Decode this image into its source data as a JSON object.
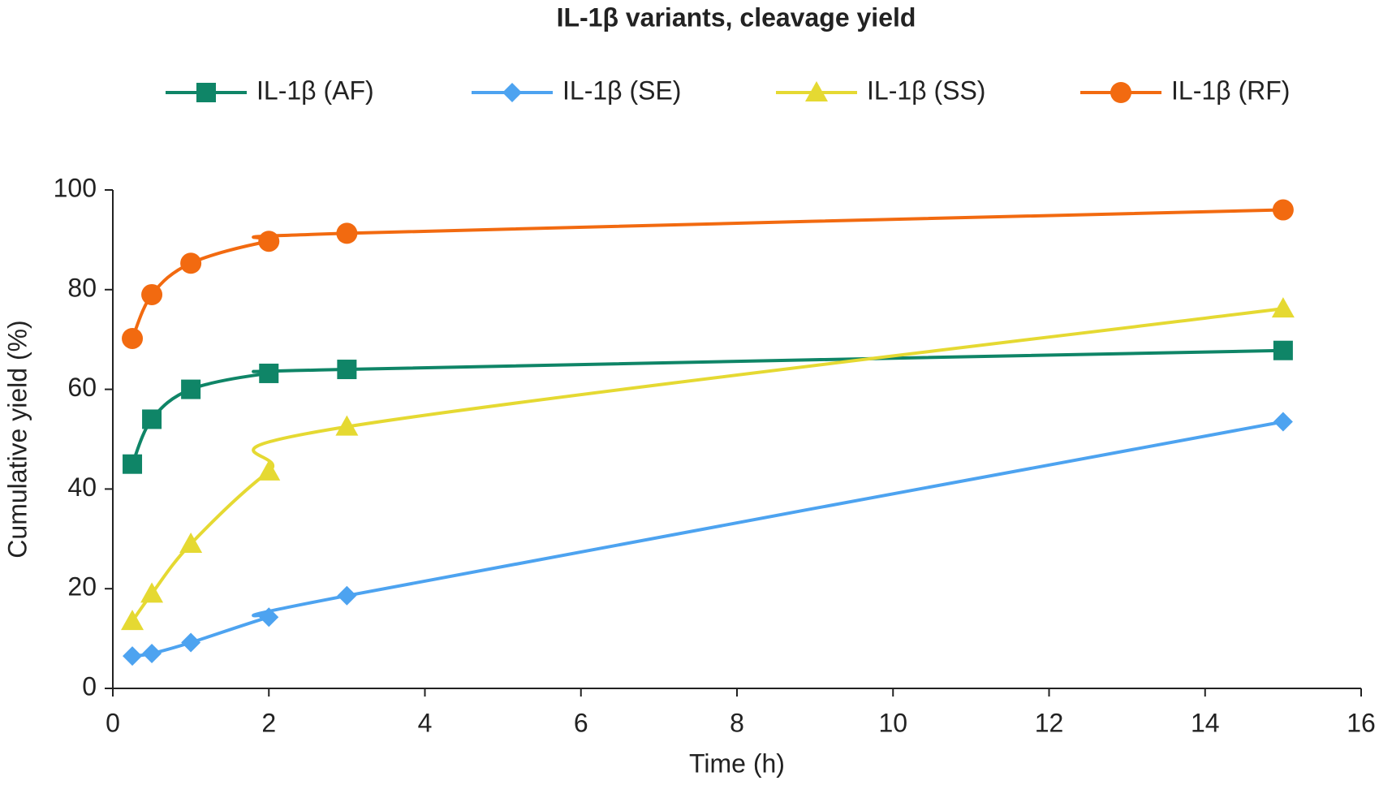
{
  "chart_data": {
    "type": "line",
    "title": "IL-1β variants, cleavage yield",
    "x_label": "Time (h)",
    "y_label": "Cumulative yield (%)",
    "x": [
      0.25,
      0.5,
      1,
      2,
      3,
      15
    ],
    "series": [
      {
        "name": "IL-1β (AF)",
        "color": "#0f8567",
        "marker": "square",
        "values": [
          45,
          54,
          60,
          63.2,
          64,
          67.8
        ]
      },
      {
        "name": "IL-1β (SE)",
        "color": "#4da3f0",
        "marker": "diamond",
        "values": [
          6.5,
          7,
          9.2,
          14.3,
          18.6,
          53.5
        ]
      },
      {
        "name": "IL-1β (SS)",
        "color": "#e5d932",
        "marker": "triangle",
        "values": [
          13.5,
          19,
          29,
          43.5,
          52.5,
          76.2
        ]
      },
      {
        "name": "IL-1β (RF)",
        "color": "#f26a10",
        "marker": "circle",
        "values": [
          70.2,
          79,
          85.3,
          89.7,
          91.3,
          96
        ]
      }
    ],
    "xlim": [
      0,
      16
    ],
    "xticks": [
      0,
      2,
      4,
      6,
      8,
      10,
      12,
      14,
      16
    ],
    "ylim": [
      0,
      100
    ],
    "yticks": [
      0,
      20,
      40,
      60,
      80,
      100
    ],
    "smooth": true,
    "grid": false
  }
}
